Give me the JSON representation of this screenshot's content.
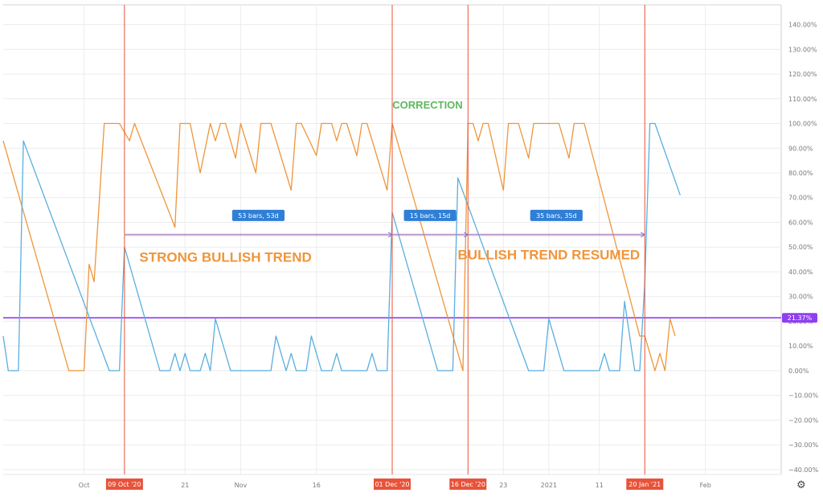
{
  "chart_data": {
    "type": "line",
    "ylim": [
      -42,
      148
    ],
    "xlim": [
      "2020-09-15",
      "2021-02-16"
    ],
    "yticks": [
      140,
      130,
      120,
      110,
      100,
      90,
      80,
      70,
      60,
      50,
      40,
      30,
      20,
      10,
      0,
      -10,
      -20,
      -30,
      -40
    ],
    "ytick_labels": [
      "140.00%",
      "130.00%",
      "120.00%",
      "110.00%",
      "100.00%",
      "90.00%",
      "80.00%",
      "70.00%",
      "60.00%",
      "50.00%",
      "40.00%",
      "30.00%",
      "20.00%",
      "10.00%",
      "0.00%",
      "−10.00%",
      "−20.00%",
      "−30.00%",
      "−40.00%"
    ],
    "xticks": [
      {
        "date": "2020-10-01",
        "label": "Oct"
      },
      {
        "date": "2020-10-21",
        "label": "21"
      },
      {
        "date": "2020-11-01",
        "label": "Nov"
      },
      {
        "date": "2020-11-16",
        "label": "16"
      },
      {
        "date": "2020-12-23",
        "label": "23"
      },
      {
        "date": "2021-01-01",
        "label": "2021"
      },
      {
        "date": "2021-01-11",
        "label": "11"
      },
      {
        "date": "2021-02-01",
        "label": "Feb"
      }
    ],
    "grid": true,
    "series": [
      {
        "color": "#f0953a",
        "points": [
          [
            "2020-09-15",
            93
          ],
          [
            "2020-09-28",
            0
          ],
          [
            "2020-10-01",
            0
          ],
          [
            "2020-10-02",
            43
          ],
          [
            "2020-10-03",
            36
          ],
          [
            "2020-10-05",
            100
          ],
          [
            "2020-10-08",
            100
          ],
          [
            "2020-10-10",
            93
          ],
          [
            "2020-10-11",
            100
          ],
          [
            "2020-10-19",
            58
          ],
          [
            "2020-10-20",
            100
          ],
          [
            "2020-10-22",
            100
          ],
          [
            "2020-10-24",
            80
          ],
          [
            "2020-10-26",
            100
          ],
          [
            "2020-10-27",
            93
          ],
          [
            "2020-10-28",
            100
          ],
          [
            "2020-10-29",
            100
          ],
          [
            "2020-10-31",
            86
          ],
          [
            "2020-11-01",
            100
          ],
          [
            "2020-11-04",
            80
          ],
          [
            "2020-11-05",
            100
          ],
          [
            "2020-11-07",
            100
          ],
          [
            "2020-11-11",
            73
          ],
          [
            "2020-11-12",
            100
          ],
          [
            "2020-11-13",
            100
          ],
          [
            "2020-11-16",
            87
          ],
          [
            "2020-11-17",
            100
          ],
          [
            "2020-11-19",
            100
          ],
          [
            "2020-11-20",
            93
          ],
          [
            "2020-11-21",
            100
          ],
          [
            "2020-11-22",
            100
          ],
          [
            "2020-11-24",
            87
          ],
          [
            "2020-11-25",
            100
          ],
          [
            "2020-11-26",
            100
          ],
          [
            "2020-11-30",
            73
          ],
          [
            "2020-12-01",
            100
          ],
          [
            "2020-12-15",
            0
          ],
          [
            "2020-12-16",
            100
          ],
          [
            "2020-12-17",
            100
          ],
          [
            "2020-12-18",
            93
          ],
          [
            "2020-12-19",
            100
          ],
          [
            "2020-12-20",
            100
          ],
          [
            "2020-12-23",
            73
          ],
          [
            "2020-12-24",
            100
          ],
          [
            "2020-12-26",
            100
          ],
          [
            "2020-12-28",
            86
          ],
          [
            "2020-12-29",
            100
          ],
          [
            "2020-12-31",
            100
          ],
          [
            "2021-01-02",
            100
          ],
          [
            "2021-01-03",
            100
          ],
          [
            "2021-01-05",
            86
          ],
          [
            "2021-01-06",
            100
          ],
          [
            "2021-01-08",
            100
          ],
          [
            "2021-01-19",
            14
          ],
          [
            "2021-01-20",
            14
          ],
          [
            "2021-01-21",
            7
          ],
          [
            "2021-01-22",
            0
          ],
          [
            "2021-01-23",
            7
          ],
          [
            "2021-01-24",
            0
          ],
          [
            "2021-01-25",
            21
          ],
          [
            "2021-01-26",
            14
          ]
        ]
      },
      {
        "color": "#5aaee0",
        "points": [
          [
            "2020-09-15",
            14
          ],
          [
            "2020-09-16",
            0
          ],
          [
            "2020-09-18",
            0
          ],
          [
            "2020-09-19",
            93
          ],
          [
            "2020-10-06",
            0
          ],
          [
            "2020-10-08",
            0
          ],
          [
            "2020-10-09",
            50
          ],
          [
            "2020-10-16",
            0
          ],
          [
            "2020-10-18",
            0
          ],
          [
            "2020-10-19",
            7
          ],
          [
            "2020-10-20",
            0
          ],
          [
            "2020-10-21",
            7
          ],
          [
            "2020-10-22",
            0
          ],
          [
            "2020-10-24",
            0
          ],
          [
            "2020-10-25",
            7
          ],
          [
            "2020-10-26",
            0
          ],
          [
            "2020-10-27",
            21
          ],
          [
            "2020-10-30",
            0
          ],
          [
            "2020-11-07",
            0
          ],
          [
            "2020-11-08",
            14
          ],
          [
            "2020-11-10",
            0
          ],
          [
            "2020-11-11",
            7
          ],
          [
            "2020-11-12",
            0
          ],
          [
            "2020-11-14",
            0
          ],
          [
            "2020-11-15",
            14
          ],
          [
            "2020-11-17",
            0
          ],
          [
            "2020-11-19",
            0
          ],
          [
            "2020-11-20",
            7
          ],
          [
            "2020-11-21",
            0
          ],
          [
            "2020-11-26",
            0
          ],
          [
            "2020-11-27",
            7
          ],
          [
            "2020-11-28",
            0
          ],
          [
            "2020-11-30",
            0
          ],
          [
            "2020-12-01",
            64
          ],
          [
            "2020-12-10",
            0
          ],
          [
            "2020-12-13",
            0
          ],
          [
            "2020-12-14",
            78
          ],
          [
            "2020-12-28",
            0
          ],
          [
            "2020-12-31",
            0
          ],
          [
            "2021-01-01",
            21
          ],
          [
            "2021-01-04",
            0
          ],
          [
            "2021-01-11",
            0
          ],
          [
            "2021-01-12",
            7
          ],
          [
            "2021-01-13",
            0
          ],
          [
            "2021-01-15",
            0
          ],
          [
            "2021-01-16",
            28
          ],
          [
            "2021-01-18",
            0
          ],
          [
            "2021-01-19",
            0
          ],
          [
            "2021-01-20",
            36
          ],
          [
            "2021-01-21",
            100
          ],
          [
            "2021-01-22",
            100
          ],
          [
            "2021-01-27",
            71
          ]
        ]
      }
    ],
    "horizontal_line": {
      "value": 21.37,
      "color": "#8f3ff0",
      "label": "21.37%"
    },
    "vertical_markers": [
      {
        "date": "2020-10-09",
        "label": "09 Oct '20",
        "color": "#e8533a"
      },
      {
        "date": "2020-12-01",
        "label": "01 Dec '20",
        "color": "#e8533a"
      },
      {
        "date": "2020-12-16",
        "label": "16 Dec '20",
        "color": "#e8533a"
      },
      {
        "date": "2021-01-20",
        "label": "20 Jan '21",
        "color": "#e8533a"
      }
    ],
    "measurements": [
      {
        "from": "2020-10-09",
        "to": "2020-12-01",
        "y": 55,
        "label": "53 bars, 53d"
      },
      {
        "from": "2020-12-01",
        "to": "2020-12-16",
        "y": 55,
        "label": "15 bars, 15d"
      },
      {
        "from": "2020-12-16",
        "to": "2021-01-20",
        "y": 55,
        "label": "35 bars, 35d"
      }
    ],
    "annotations": [
      {
        "text": "CORRECTION",
        "date": "2020-12-08",
        "y": 106,
        "color": "#5cb85c",
        "size": "small"
      },
      {
        "text": "STRONG BULLISH TREND",
        "date": "2020-10-29",
        "y": 44,
        "color": "#f0953a",
        "size": "large"
      },
      {
        "text": "BULLISH TREND RESUMED",
        "date": "2021-01-01",
        "y": 45,
        "color": "#f0953a",
        "size": "large"
      }
    ]
  },
  "toolbar": {
    "settings_icon": "gear-icon"
  }
}
